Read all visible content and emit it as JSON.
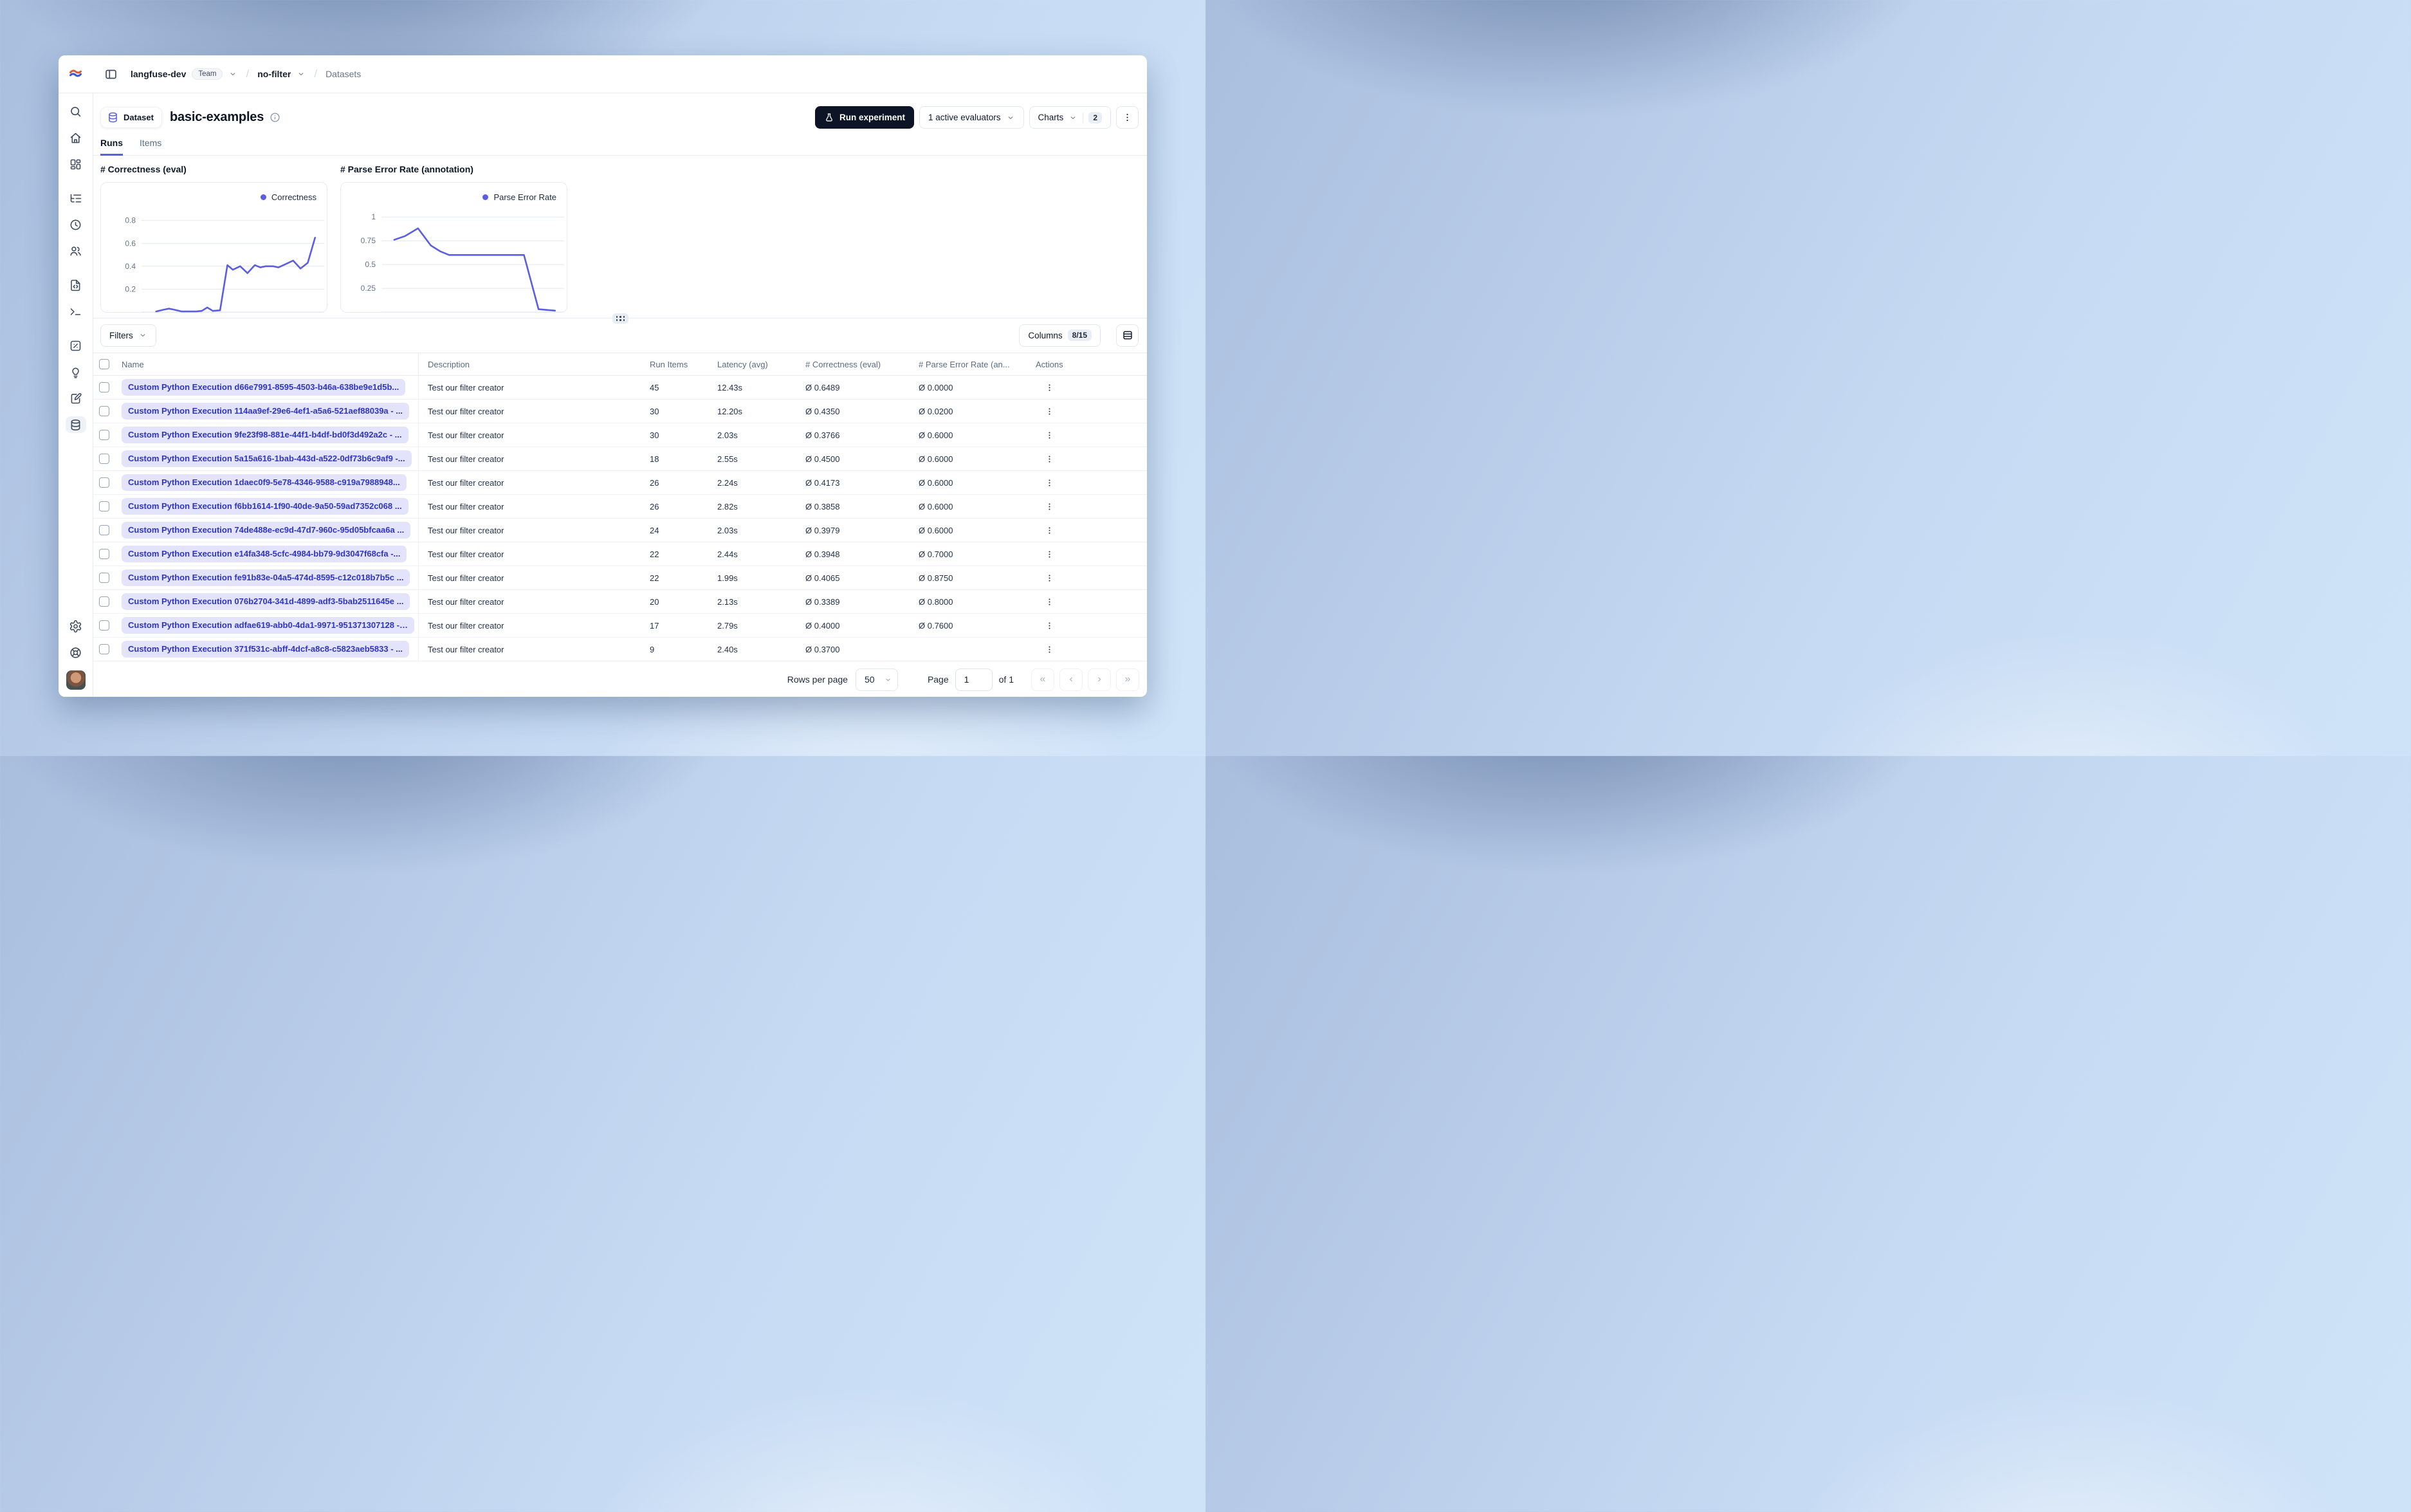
{
  "header": {
    "org": "langfuse-dev",
    "org_badge": "Team",
    "project": "no-filter",
    "section": "Datasets"
  },
  "title": {
    "badge_label": "Dataset",
    "name": "basic-examples"
  },
  "actions": {
    "run_experiment": "Run experiment",
    "evaluators": "1 active evaluators",
    "charts_label": "Charts",
    "charts_count": "2"
  },
  "tabs": [
    {
      "label": "Runs",
      "active": true
    },
    {
      "label": "Items",
      "active": false
    }
  ],
  "chart_data": [
    {
      "type": "line",
      "title": "# Correctness (eval)",
      "legend": [
        "Correctness"
      ],
      "series": [
        {
          "name": "Correctness",
          "points": [
            [
              0.08,
              0.005
            ],
            [
              0.12,
              0.02
            ],
            [
              0.15,
              0.03
            ],
            [
              0.18,
              0.02
            ],
            [
              0.22,
              0.005
            ],
            [
              0.26,
              0.005
            ],
            [
              0.3,
              0.005
            ],
            [
              0.33,
              0.01
            ],
            [
              0.36,
              0.04
            ],
            [
              0.39,
              0.01
            ],
            [
              0.43,
              0.015
            ],
            [
              0.47,
              0.41
            ],
            [
              0.5,
              0.37
            ],
            [
              0.54,
              0.4
            ],
            [
              0.58,
              0.34
            ],
            [
              0.62,
              0.41
            ],
            [
              0.65,
              0.39
            ],
            [
              0.68,
              0.4
            ],
            [
              0.72,
              0.4
            ],
            [
              0.75,
              0.39
            ],
            [
              0.79,
              0.42
            ],
            [
              0.83,
              0.45
            ],
            [
              0.87,
              0.38
            ],
            [
              0.91,
              0.43
            ],
            [
              0.95,
              0.65
            ]
          ]
        }
      ],
      "yticks": [
        0.2,
        0.4,
        0.6,
        0.8
      ],
      "ylim": [
        0,
        1.13
      ],
      "grid": true,
      "legend_position": "top-right",
      "line_color": "#5b5ee1"
    },
    {
      "type": "line",
      "title": "# Parse Error Rate (annotation)",
      "legend": [
        "Parse Error Rate"
      ],
      "series": [
        {
          "name": "Parse Error Rate",
          "points": [
            [
              0.07,
              0.76
            ],
            [
              0.13,
              0.8
            ],
            [
              0.2,
              0.88
            ],
            [
              0.27,
              0.7
            ],
            [
              0.32,
              0.64
            ],
            [
              0.37,
              0.6
            ],
            [
              0.55,
              0.6
            ],
            [
              0.78,
              0.6
            ],
            [
              0.86,
              0.03
            ],
            [
              0.95,
              0.015
            ]
          ]
        }
      ],
      "yticks": [
        0.25,
        0.5,
        0.75,
        1
      ],
      "ylim": [
        0,
        1.36
      ],
      "grid": true,
      "legend_position": "top-right",
      "line_color": "#5b5ee1"
    }
  ],
  "toolbar": {
    "filters": "Filters",
    "columns": "Columns",
    "columns_count": "8/15"
  },
  "table": {
    "headers": [
      "Name",
      "Description",
      "Run Items",
      "Latency (avg)",
      "# Correctness (eval)",
      "# Parse Error Rate (an...",
      "Actions"
    ],
    "rows": [
      {
        "name": "Custom Python Execution d66e7991-8595-4503-b46a-638be9e1d5b...",
        "description": "Test our filter creator",
        "run_items": "45",
        "latency": "12.43s",
        "correctness": "Ø 0.6489",
        "parse_error_rate": "Ø 0.0000"
      },
      {
        "name": "Custom Python Execution 114aa9ef-29e6-4ef1-a5a6-521aef88039a - ...",
        "description": "Test our filter creator",
        "run_items": "30",
        "latency": "12.20s",
        "correctness": "Ø 0.4350",
        "parse_error_rate": "Ø 0.0200"
      },
      {
        "name": "Custom Python Execution 9fe23f98-881e-44f1-b4df-bd0f3d492a2c - ...",
        "description": "Test our filter creator",
        "run_items": "30",
        "latency": "2.03s",
        "correctness": "Ø 0.3766",
        "parse_error_rate": "Ø 0.6000"
      },
      {
        "name": "Custom Python Execution 5a15a616-1bab-443d-a522-0df73b6c9af9 -...",
        "description": "Test our filter creator",
        "run_items": "18",
        "latency": "2.55s",
        "correctness": "Ø 0.4500",
        "parse_error_rate": "Ø 0.6000"
      },
      {
        "name": "Custom Python Execution 1daec0f9-5e78-4346-9588-c919a7988948...",
        "description": "Test our filter creator",
        "run_items": "26",
        "latency": "2.24s",
        "correctness": "Ø 0.4173",
        "parse_error_rate": "Ø 0.6000"
      },
      {
        "name": "Custom Python Execution f6bb1614-1f90-40de-9a50-59ad7352c068 ...",
        "description": "Test our filter creator",
        "run_items": "26",
        "latency": "2.82s",
        "correctness": "Ø 0.3858",
        "parse_error_rate": "Ø 0.6000"
      },
      {
        "name": "Custom Python Execution 74de488e-ec9d-47d7-960c-95d05bfcaa6a ...",
        "description": "Test our filter creator",
        "run_items": "24",
        "latency": "2.03s",
        "correctness": "Ø 0.3979",
        "parse_error_rate": "Ø 0.6000"
      },
      {
        "name": "Custom Python Execution e14fa348-5cfc-4984-bb79-9d3047f68cfa -...",
        "description": "Test our filter creator",
        "run_items": "22",
        "latency": "2.44s",
        "correctness": "Ø 0.3948",
        "parse_error_rate": "Ø 0.7000"
      },
      {
        "name": "Custom Python Execution fe91b83e-04a5-474d-8595-c12c018b7b5c ...",
        "description": "Test our filter creator",
        "run_items": "22",
        "latency": "1.99s",
        "correctness": "Ø 0.4065",
        "parse_error_rate": "Ø 0.8750"
      },
      {
        "name": "Custom Python Execution 076b2704-341d-4899-adf3-5bab2511645e ...",
        "description": "Test our filter creator",
        "run_items": "20",
        "latency": "2.13s",
        "correctness": "Ø 0.3389",
        "parse_error_rate": "Ø 0.8000"
      },
      {
        "name": "Custom Python Execution adfae619-abb0-4da1-9971-951371307128 - ...",
        "description": "Test our filter creator",
        "run_items": "17",
        "latency": "2.79s",
        "correctness": "Ø 0.4000",
        "parse_error_rate": "Ø 0.7600"
      },
      {
        "name": "Custom Python Execution 371f531c-abff-4dcf-a8c8-c5823aeb5833 - ...",
        "description": "Test our filter creator",
        "run_items": "9",
        "latency": "2.40s",
        "correctness": "Ø 0.3700",
        "parse_error_rate": ""
      }
    ]
  },
  "footer": {
    "rows_per_page_label": "Rows per page",
    "rows_per_page_value": "50",
    "page_label": "Page",
    "page_value": "1",
    "of_label": "of 1",
    "pager": [
      {
        "name": "first-page",
        "glyph": "«"
      },
      {
        "name": "prev-page",
        "glyph": "‹"
      },
      {
        "name": "next-page",
        "glyph": "›"
      },
      {
        "name": "last-page",
        "glyph": "»"
      }
    ]
  },
  "sidebar": {
    "items": [
      {
        "name": "search",
        "icon": "search",
        "group": 1
      },
      {
        "name": "home",
        "icon": "home",
        "group": 1
      },
      {
        "name": "dashboards",
        "icon": "blocks",
        "group": 1
      },
      {
        "name": "tracing",
        "icon": "list-tree",
        "group": 2
      },
      {
        "name": "sessions",
        "icon": "clock",
        "group": 2
      },
      {
        "name": "users",
        "icon": "users",
        "group": 2
      },
      {
        "name": "prompts",
        "icon": "file-code",
        "group": 3
      },
      {
        "name": "playground",
        "icon": "terminal",
        "group": 3
      },
      {
        "name": "llm-as-judge",
        "icon": "box-percent",
        "group": 4
      },
      {
        "name": "evaluation",
        "icon": "lightbulb",
        "group": 4
      },
      {
        "name": "annotation-queues",
        "icon": "clipboard-pen",
        "group": 4
      },
      {
        "name": "datasets",
        "icon": "database",
        "group": 4,
        "active": true
      }
    ],
    "bottom_items": [
      {
        "name": "settings",
        "icon": "gear"
      },
      {
        "name": "support",
        "icon": "lifebuoy"
      }
    ]
  },
  "colors": {
    "accent": "#5b5ee1",
    "dark_button": "#0c1426",
    "pill_bg": "#e3e3fb",
    "pill_text": "#2e35c0",
    "border": "#e8ecf1",
    "muted_text": "#5b6b80"
  }
}
